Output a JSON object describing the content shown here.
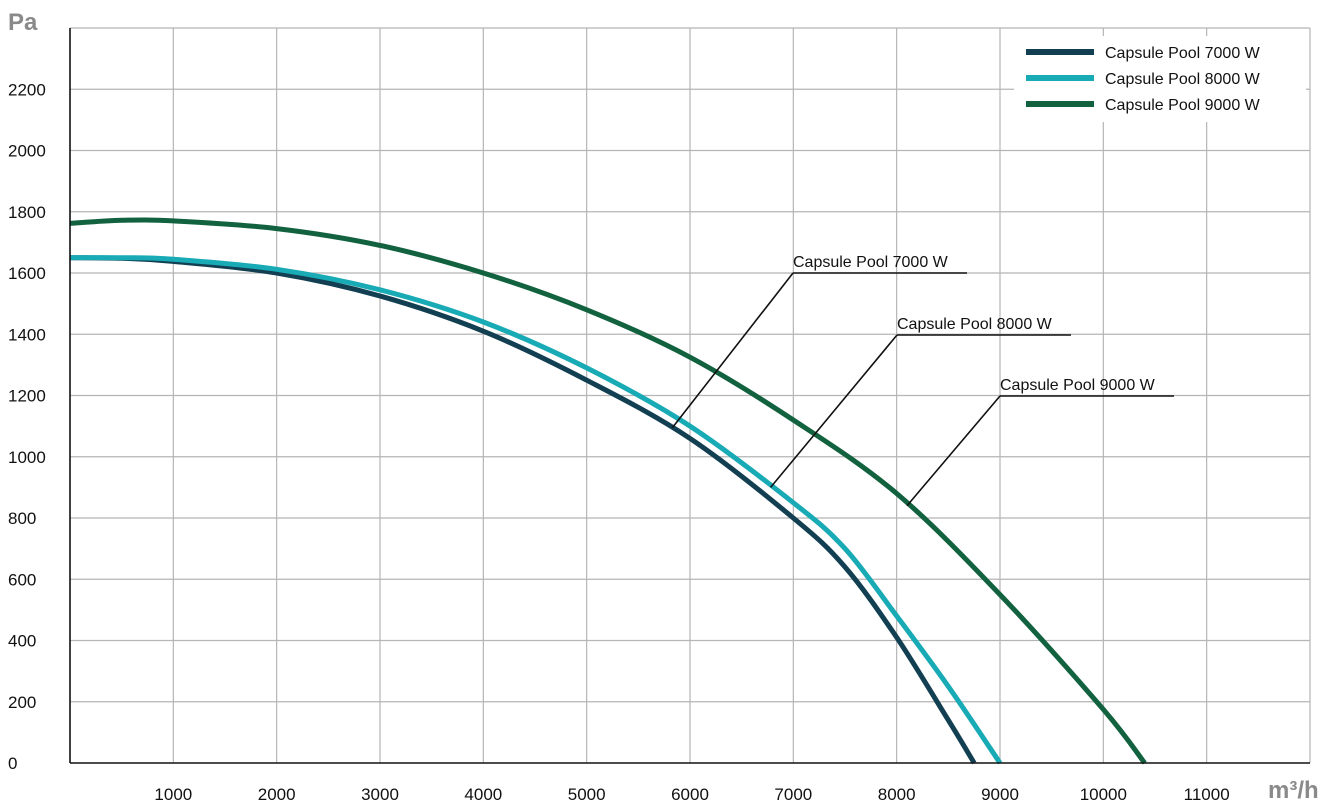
{
  "chart_data": {
    "type": "line",
    "title": "",
    "xlabel": "m³/h",
    "ylabel": "Pa",
    "xlim": [
      0,
      12000
    ],
    "ylim": [
      0,
      2400
    ],
    "grid": true,
    "legend_position": "top-right",
    "x_ticks": [
      "1000",
      "2000",
      "3000",
      "4000",
      "5000",
      "6000",
      "7000",
      "8000",
      "9000",
      "10000",
      "11000"
    ],
    "y_ticks": [
      "0",
      "200",
      "400",
      "600",
      "800",
      "1000",
      "1200",
      "1400",
      "1600",
      "1800",
      "2000",
      "2200"
    ],
    "series": [
      {
        "name": "Capsule Pool 7000 W",
        "color": "#123f52",
        "points": [
          [
            0,
            1650
          ],
          [
            500,
            1648
          ],
          [
            1000,
            1638
          ],
          [
            2000,
            1600
          ],
          [
            3000,
            1525
          ],
          [
            4000,
            1410
          ],
          [
            5000,
            1250
          ],
          [
            6000,
            1060
          ],
          [
            7000,
            800
          ],
          [
            7500,
            640
          ],
          [
            8000,
            410
          ],
          [
            8500,
            140
          ],
          [
            8750,
            0
          ]
        ]
      },
      {
        "name": "Capsule Pool 8000 W",
        "color": "#18aab5",
        "points": [
          [
            0,
            1650
          ],
          [
            500,
            1650
          ],
          [
            1000,
            1645
          ],
          [
            2000,
            1612
          ],
          [
            3000,
            1545
          ],
          [
            4000,
            1440
          ],
          [
            5000,
            1290
          ],
          [
            6000,
            1100
          ],
          [
            7000,
            850
          ],
          [
            7500,
            700
          ],
          [
            8000,
            480
          ],
          [
            8500,
            250
          ],
          [
            9000,
            0
          ]
        ]
      },
      {
        "name": "Capsule Pool 9000 W",
        "color": "#12623f",
        "points": [
          [
            0,
            1762
          ],
          [
            500,
            1772
          ],
          [
            1000,
            1770
          ],
          [
            2000,
            1745
          ],
          [
            3000,
            1690
          ],
          [
            4000,
            1600
          ],
          [
            5000,
            1480
          ],
          [
            6000,
            1325
          ],
          [
            7000,
            1120
          ],
          [
            8000,
            880
          ],
          [
            9000,
            550
          ],
          [
            10000,
            175
          ],
          [
            10400,
            0
          ]
        ]
      }
    ],
    "annotations": [
      {
        "text": "Capsule Pool 7000 W",
        "series": "Capsule Pool 7000 W",
        "x": 5830,
        "y": 1095
      },
      {
        "text": "Capsule Pool 8000 W",
        "series": "Capsule Pool 8000 W",
        "x": 6780,
        "y": 900
      },
      {
        "text": "Capsule Pool 9000 W",
        "series": "Capsule Pool 9000 W",
        "x": 8100,
        "y": 840
      }
    ]
  }
}
